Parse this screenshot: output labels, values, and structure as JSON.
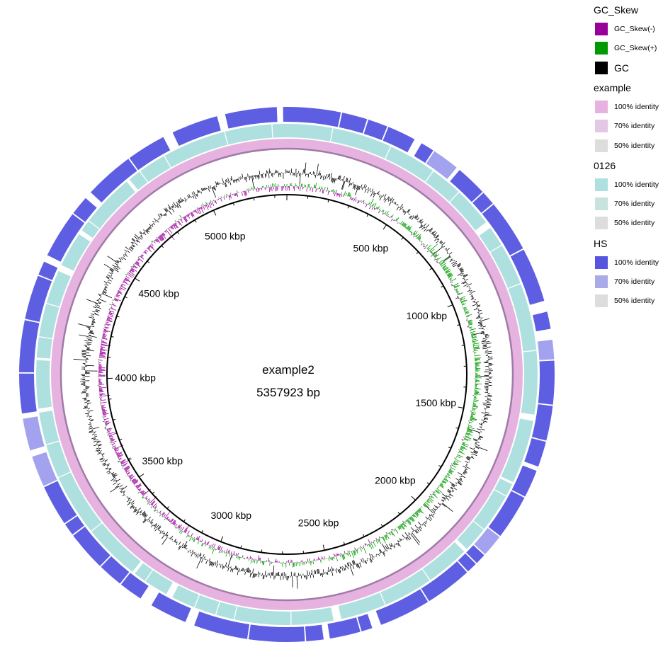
{
  "map": {
    "name": "example2",
    "length_label": "5357923 bp",
    "genome_length_bp": 5357923
  },
  "scale": {
    "tick_labels": [
      {
        "kbp": 500,
        "text": "500 kbp"
      },
      {
        "kbp": 1000,
        "text": "1000 kbp"
      },
      {
        "kbp": 1500,
        "text": "1500 kbp"
      },
      {
        "kbp": 2000,
        "text": "2000 kbp"
      },
      {
        "kbp": 2500,
        "text": "2500 kbp"
      },
      {
        "kbp": 3000,
        "text": "3000 kbp"
      },
      {
        "kbp": 3500,
        "text": "3500 kbp"
      },
      {
        "kbp": 4000,
        "text": "4000 kbp"
      },
      {
        "kbp": 4500,
        "text": "4500 kbp"
      },
      {
        "kbp": 5000,
        "text": "5000 kbp"
      }
    ]
  },
  "rings": [
    {
      "name": "GC_Skew",
      "colors": {
        "negative": "#990099",
        "positive": "#009900"
      }
    },
    {
      "name": "GC",
      "color": "#000000"
    },
    {
      "name": "example",
      "color": "#e6b3e0",
      "edge_color": "#a07aa8"
    },
    {
      "name": "0126",
      "color": "#aee0df"
    },
    {
      "name": "HS",
      "color": "#5555e0"
    }
  ],
  "legend": [
    {
      "title": "GC_Skew",
      "items": [
        {
          "label": "GC_Skew(-)",
          "color": "#990099",
          "large": false
        },
        {
          "label": "GC_Skew(+)",
          "color": "#009900",
          "large": false
        },
        {
          "label": "GC",
          "color": "#000000",
          "large": true
        }
      ]
    },
    {
      "title": "example",
      "items": [
        {
          "label": "100% identity",
          "color": "#e6b3e0"
        },
        {
          "label": "70% identity",
          "color": "#e2c8e4"
        },
        {
          "label": "50% identity",
          "color": "#dddddd"
        }
      ]
    },
    {
      "title": "0126",
      "items": [
        {
          "label": "100% identity",
          "color": "#aee0df"
        },
        {
          "label": "70% identity",
          "color": "#c8e2de"
        },
        {
          "label": "50% identity",
          "color": "#dddddd"
        }
      ]
    },
    {
      "title": "HS",
      "items": [
        {
          "label": "100% identity",
          "color": "#5555e0"
        },
        {
          "label": "70% identity",
          "color": "#aaaae6"
        },
        {
          "label": "50% identity",
          "color": "#dddddd"
        }
      ]
    }
  ]
}
